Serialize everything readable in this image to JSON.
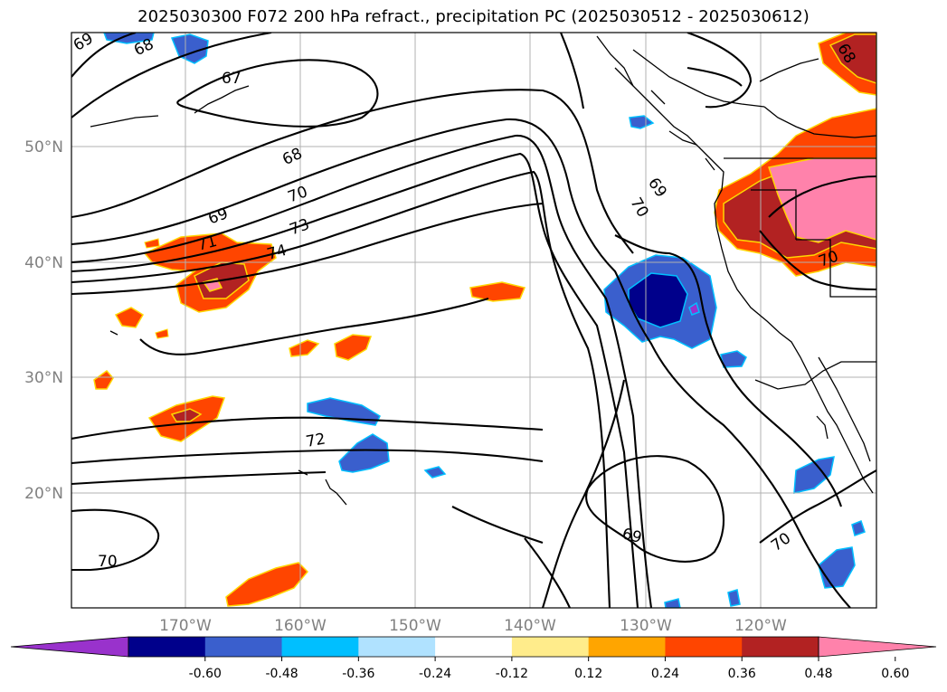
{
  "title": "2025030300 F072 200 hPa refract., precipitation PC (2025030512 - 2025030612)",
  "map": {
    "lat_labels": [
      "50°N",
      "40°N",
      "30°N",
      "20°N"
    ],
    "lon_labels": [
      "170°W",
      "160°W",
      "150°W",
      "140°W",
      "130°W",
      "120°W"
    ],
    "contour_labels": [
      "69",
      "68",
      "67",
      "68",
      "70",
      "69",
      "73",
      "71",
      "74",
      "69",
      "70",
      "72",
      "70",
      "69",
      "70",
      "70",
      "68"
    ],
    "colors": {
      "coast": "#000000",
      "grid": "#b0b0b0",
      "contour": "#000000"
    }
  },
  "colorbar": {
    "levels": [
      "-0.60",
      "-0.48",
      "-0.36",
      "-0.24",
      "-0.12",
      "0.12",
      "0.24",
      "0.36",
      "0.48",
      "0.60"
    ],
    "colors": [
      "#9932cc",
      "#00008b",
      "#3a5fcd",
      "#00bfff",
      "#b0e2ff",
      "#ffffff",
      "#ffec8b",
      "#ffa500",
      "#ff4500",
      "#b22222",
      "#ff82ab"
    ]
  }
}
